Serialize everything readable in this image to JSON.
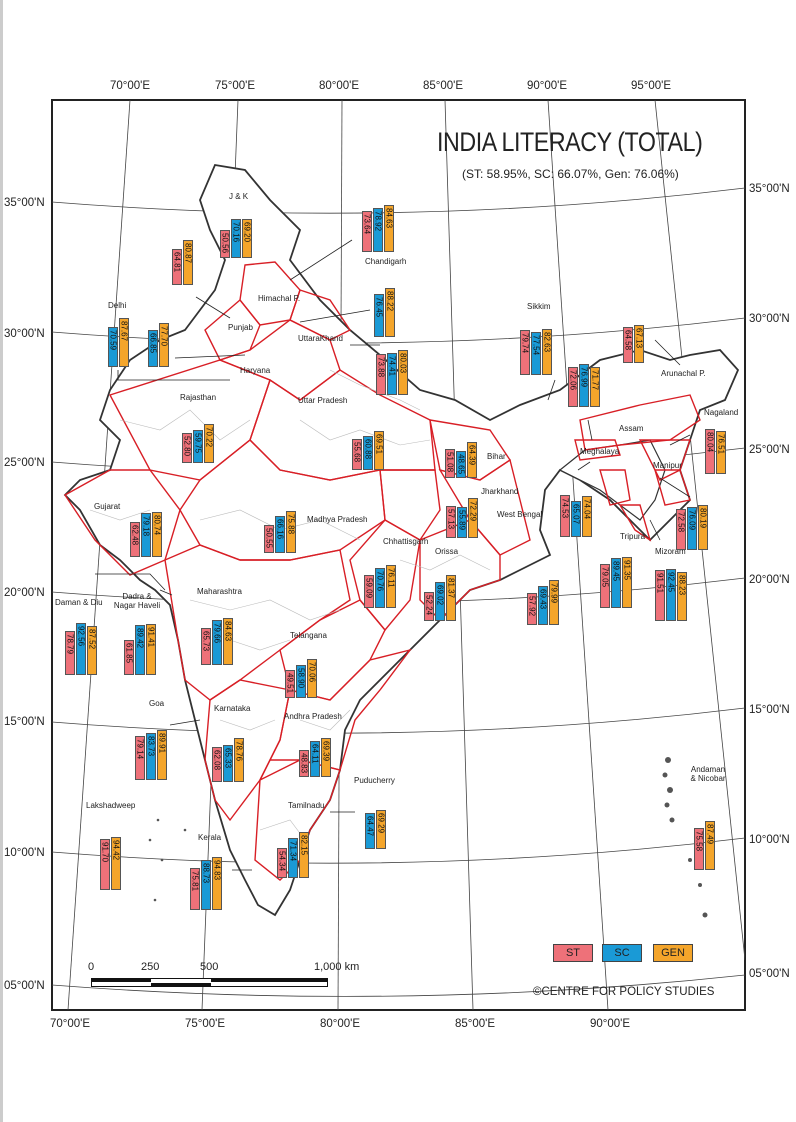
{
  "title": "INDIA LITERACY (TOTAL)",
  "subtitle": "(ST: 58.95%, SC: 66.07%, Gen: 76.06%)",
  "top_ticks": [
    "70°00'E",
    "75°00'E",
    "80°00'E",
    "85°00'E",
    "90°00'E",
    "95°00'E"
  ],
  "bottom_ticks": [
    "70°00'E",
    "75°00'E",
    "80°00'E",
    "85°00'E",
    "90°00'E"
  ],
  "left_ticks": [
    "35°00'N",
    "30°00'N",
    "25°00'N",
    "20°00'N",
    "15°00'N",
    "10°00'N",
    "05°00'N"
  ],
  "right_ticks": [
    "35°00'N",
    "30°00'N",
    "25°00'N",
    "20°00'N",
    "15°00'N",
    "10°00'N",
    "05°00'N"
  ],
  "legend": {
    "st": "ST",
    "sc": "SC",
    "gen": "GEN",
    "colors": {
      "st": "#ee7179",
      "sc": "#1a9ad6",
      "gen": "#f4a52b"
    }
  },
  "scale": {
    "labels": [
      "0",
      "250",
      "500",
      "1,000 km"
    ]
  },
  "credit": "©CENTRE FOR POLICY STUDIES",
  "states": [
    {
      "name": "J & K",
      "st": "50.56",
      "sc": "70.16",
      "gen": "69.20"
    },
    {
      "name": "Himachal P.",
      "st": "64.81",
      "sc": "",
      "gen": "80.87"
    },
    {
      "name": "",
      "st": "73.64",
      "sc": "78.92",
      "gen": "84.63"
    },
    {
      "name": "Chandigarh",
      "st": "",
      "sc": "76.45",
      "gen": "88.22"
    },
    {
      "name": "Delhi",
      "st": "",
      "sc": "70.59",
      "gen": "87.67"
    },
    {
      "name": "Punjab",
      "st": "",
      "sc": "66.85",
      "gen": "77.70"
    },
    {
      "name": "Haryana",
      "st": "",
      "sc": "",
      "gen": ""
    },
    {
      "name": "UttaraKhand",
      "st": "73.88",
      "sc": "74.41",
      "gen": "80.03"
    },
    {
      "name": "Sikkim",
      "st": "79.74",
      "sc": "77.54",
      "gen": "82.63"
    },
    {
      "name": "Arunachal P.",
      "st": "64.58",
      "sc": "",
      "gen": "67.13"
    },
    {
      "name": "",
      "st": "72.06",
      "sc": "76.99",
      "gen": "71.77"
    },
    {
      "name": "Rajasthan",
      "st": "52.80",
      "sc": "59.75",
      "gen": "70.22"
    },
    {
      "name": "Uttar Pradesh",
      "st": "55.68",
      "sc": "60.88",
      "gen": "69.51"
    },
    {
      "name": "Bihar",
      "st": "51.08",
      "sc": "48.65",
      "gen": "64.39"
    },
    {
      "name": "Assam",
      "st": "",
      "sc": "",
      "gen": ""
    },
    {
      "name": "Nagaland",
      "st": "80.04",
      "sc": "",
      "gen": "76.51"
    },
    {
      "name": "Meghalaya",
      "st": "74.53",
      "sc": "65.07",
      "gen": "74.04"
    },
    {
      "name": "Manipur",
      "st": "72.58",
      "sc": "76.09",
      "gen": "80.19"
    },
    {
      "name": "Gujarat",
      "st": "62.48",
      "sc": "79.18",
      "gen": "80.74"
    },
    {
      "name": "Madhya Pradesh",
      "st": "50.55",
      "sc": "66.16",
      "gen": "75.88"
    },
    {
      "name": "Jharkhand",
      "st": "57.13",
      "sc": "55.89",
      "gen": "72.29"
    },
    {
      "name": "West Bengal",
      "st": "57.92",
      "sc": "69.43",
      "gen": "79.99"
    },
    {
      "name": "Tripura",
      "st": "79.05",
      "sc": "89.45",
      "gen": "91.35"
    },
    {
      "name": "Mizoram",
      "st": "91.51",
      "sc": "92.45",
      "gen": "88.23"
    },
    {
      "name": "Chhattisgarh",
      "st": "59.09",
      "sc": "70.76",
      "gen": "76.11"
    },
    {
      "name": "Orissa",
      "st": "52.24",
      "sc": "69.02",
      "gen": "81.37"
    },
    {
      "name": "Daman & Diu",
      "st": "78.79",
      "sc": "92.56",
      "gen": "87.52"
    },
    {
      "name": "Dadra & Nagar Haveli",
      "st": "61.85",
      "sc": "89.42",
      "gen": "91.41"
    },
    {
      "name": "Maharashtra",
      "st": "65.73",
      "sc": "79.66",
      "gen": "84.63"
    },
    {
      "name": "Telangana",
      "st": "49.51",
      "sc": "58.90",
      "gen": "70.06"
    },
    {
      "name": "Goa",
      "st": "79.14",
      "sc": "83.73",
      "gen": "89.91"
    },
    {
      "name": "Karnataka",
      "st": "62.08",
      "sc": "65.33",
      "gen": "78.76"
    },
    {
      "name": "Andhra Pradesh",
      "st": "48.83",
      "sc": "64.11",
      "gen": "69.39"
    },
    {
      "name": "Puducherry",
      "st": "",
      "sc": "64.47",
      "gen": "69.29"
    },
    {
      "name": "Andaman & Nicobar",
      "st": "75.58",
      "sc": "",
      "gen": "87.49"
    },
    {
      "name": "Lakshadweep",
      "st": "91.70",
      "sc": "",
      "gen": "94.42"
    },
    {
      "name": "Tamilnadu",
      "st": "54.34",
      "sc": "71.34",
      "gen": "82.15"
    },
    {
      "name": "Kerala",
      "st": "75.81",
      "sc": "88.73",
      "gen": "94.83"
    }
  ]
}
